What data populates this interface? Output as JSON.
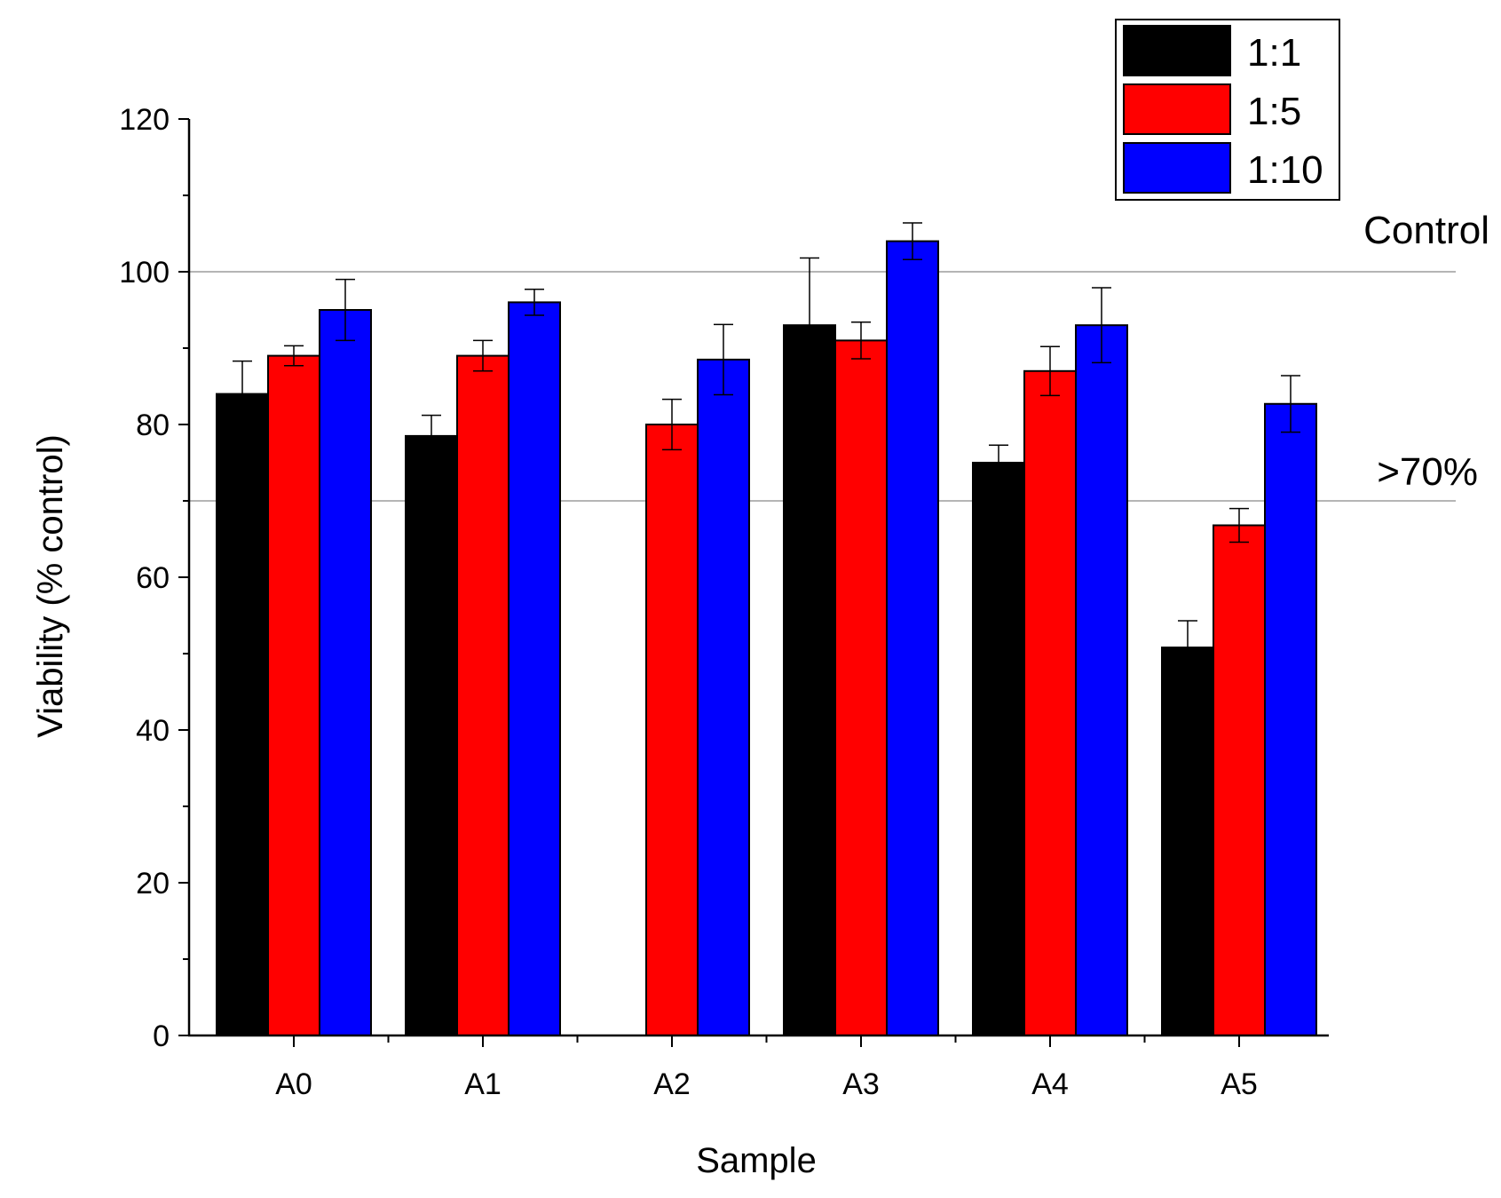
{
  "chart_data": {
    "type": "bar",
    "title": "",
    "xlabel": "Sample",
    "ylabel": "Viability (% control)",
    "ylim": [
      0,
      120
    ],
    "yticks": [
      0,
      20,
      40,
      60,
      80,
      100,
      120
    ],
    "categories": [
      "A0",
      "A1",
      "A2",
      "A3",
      "A4",
      "A5"
    ],
    "series": [
      {
        "name": "1:1",
        "color": "#000000",
        "values": [
          84,
          78.5,
          0,
          93,
          75,
          50.8
        ],
        "errors": [
          4.3,
          2.7,
          0,
          8.8,
          2.3,
          3.5
        ]
      },
      {
        "name": "1:5",
        "color": "#ff0000",
        "values": [
          89,
          89,
          80,
          91,
          87,
          66.8
        ],
        "errors": [
          1.3,
          2,
          3.3,
          2.4,
          3.2,
          2.2
        ]
      },
      {
        "name": "1:10",
        "color": "#0000ff",
        "values": [
          95,
          96,
          88.5,
          104,
          93,
          82.7
        ],
        "errors": [
          4,
          1.7,
          4.6,
          2.4,
          4.9,
          3.7
        ]
      }
    ],
    "reference_lines": [
      {
        "value": 100,
        "label": "Control"
      },
      {
        "value": 70,
        "label": ">70%"
      }
    ],
    "legend": "top-right",
    "grid": false
  }
}
